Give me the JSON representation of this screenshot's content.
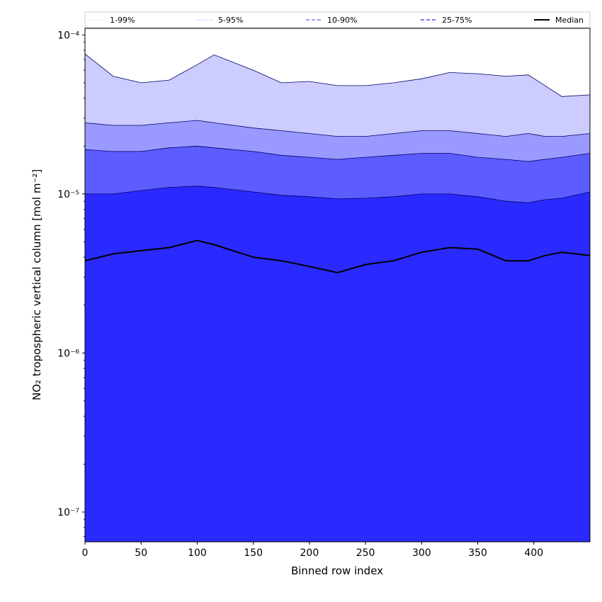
{
  "chart_data": {
    "type": "area",
    "xlabel": "Binned row index",
    "ylabel": "NO₂ tropospheric vertical column [mol m⁻²]",
    "xlim": [
      0,
      450
    ],
    "ylim": [
      6.5e-08,
      0.00011
    ],
    "yscale": "log",
    "x_ticks": [
      0,
      50,
      100,
      150,
      200,
      250,
      300,
      350,
      400
    ],
    "y_ticks": [
      {
        "value": 1e-07,
        "label": "10⁻⁷"
      },
      {
        "value": 1e-06,
        "label": "10⁻⁶"
      },
      {
        "value": 1e-05,
        "label": "10⁻⁵"
      },
      {
        "value": 0.0001,
        "label": "10⁻⁴"
      }
    ],
    "grid": false,
    "legend_position": "top, above plot, single row",
    "x": [
      0,
      25,
      50,
      75,
      100,
      115,
      150,
      175,
      200,
      225,
      250,
      275,
      300,
      325,
      350,
      375,
      395,
      410,
      425,
      450
    ],
    "series": [
      {
        "name": "1-99%",
        "style": "dotted",
        "color": "#ccccff",
        "lower": [
          6.5e-08,
          6.5e-08,
          6.5e-08,
          6.5e-08,
          6.5e-08,
          6.5e-08,
          6.5e-08,
          6.5e-08,
          6.5e-08,
          6.5e-08,
          6.5e-08,
          6.5e-08,
          6.5e-08,
          6.5e-08,
          6.5e-08,
          6.5e-08,
          6.5e-08,
          6.5e-08,
          6.5e-08,
          6.5e-08
        ],
        "upper": [
          7.6e-05,
          5.5e-05,
          5e-05,
          5.2e-05,
          6.5e-05,
          7.5e-05,
          6e-05,
          5e-05,
          5.1e-05,
          4.8e-05,
          4.8e-05,
          5e-05,
          5.3e-05,
          5.8e-05,
          5.7e-05,
          5.5e-05,
          5.6e-05,
          4.8e-05,
          4.1e-05,
          4.2e-05
        ]
      },
      {
        "name": "5-95%",
        "style": "dotted",
        "color": "#9999ff",
        "lower": [
          6.5e-08,
          6.5e-08,
          6.5e-08,
          6.5e-08,
          6.5e-08,
          6.5e-08,
          6.5e-08,
          6.5e-08,
          6.5e-08,
          6.5e-08,
          6.5e-08,
          6.5e-08,
          6.5e-08,
          6.5e-08,
          6.5e-08,
          6.5e-08,
          6.5e-08,
          6.5e-08,
          6.5e-08,
          6.5e-08
        ],
        "upper": [
          2.8e-05,
          2.7e-05,
          2.7e-05,
          2.8e-05,
          2.9e-05,
          2.8e-05,
          2.6e-05,
          2.5e-05,
          2.4e-05,
          2.3e-05,
          2.3e-05,
          2.4e-05,
          2.5e-05,
          2.5e-05,
          2.4e-05,
          2.3e-05,
          2.4e-05,
          2.3e-05,
          2.3e-05,
          2.4e-05
        ]
      },
      {
        "name": "10-90%",
        "style": "dashed",
        "color": "#5c5cff",
        "lower": [
          6.5e-08,
          6.5e-08,
          6.5e-08,
          6.5e-08,
          6.5e-08,
          6.5e-08,
          6.5e-08,
          6.5e-08,
          6.5e-08,
          6.5e-08,
          6.5e-08,
          6.5e-08,
          6.5e-08,
          6.5e-08,
          6.5e-08,
          6.5e-08,
          6.5e-08,
          6.5e-08,
          6.5e-08,
          6.5e-08
        ],
        "upper": [
          1.9e-05,
          1.85e-05,
          1.85e-05,
          1.95e-05,
          2e-05,
          1.95e-05,
          1.85e-05,
          1.75e-05,
          1.7e-05,
          1.65e-05,
          1.7e-05,
          1.75e-05,
          1.8e-05,
          1.8e-05,
          1.7e-05,
          1.65e-05,
          1.6e-05,
          1.65e-05,
          1.7e-05,
          1.8e-05
        ]
      },
      {
        "name": "25-75%",
        "style": "dashed",
        "color": "#2a2aff",
        "lower": [
          6.5e-08,
          6.5e-08,
          6.5e-08,
          6.5e-08,
          6.5e-08,
          6.5e-08,
          6.5e-08,
          6.5e-08,
          6.5e-08,
          6.5e-08,
          6.5e-08,
          6.5e-08,
          6.5e-08,
          6.5e-08,
          6.5e-08,
          6.5e-08,
          6.5e-08,
          6.5e-08,
          6.5e-08,
          6.5e-08
        ],
        "upper": [
          1e-05,
          1e-05,
          1.05e-05,
          1.1e-05,
          1.12e-05,
          1.1e-05,
          1.03e-05,
          9.8e-06,
          9.6e-06,
          9.3e-06,
          9.4e-06,
          9.6e-06,
          1e-05,
          1e-05,
          9.6e-06,
          9e-06,
          8.8e-06,
          9.2e-06,
          9.4e-06,
          1.03e-05
        ]
      },
      {
        "name": "Median",
        "style": "solid",
        "color": "#000000",
        "values": [
          3.8e-06,
          4.2e-06,
          4.4e-06,
          4.6e-06,
          5.1e-06,
          4.8e-06,
          4e-06,
          3.8e-06,
          3.5e-06,
          3.2e-06,
          3.6e-06,
          3.8e-06,
          4.3e-06,
          4.6e-06,
          4.5e-06,
          3.8e-06,
          3.8e-06,
          4.1e-06,
          4.3e-06,
          4.1e-06
        ]
      }
    ]
  }
}
